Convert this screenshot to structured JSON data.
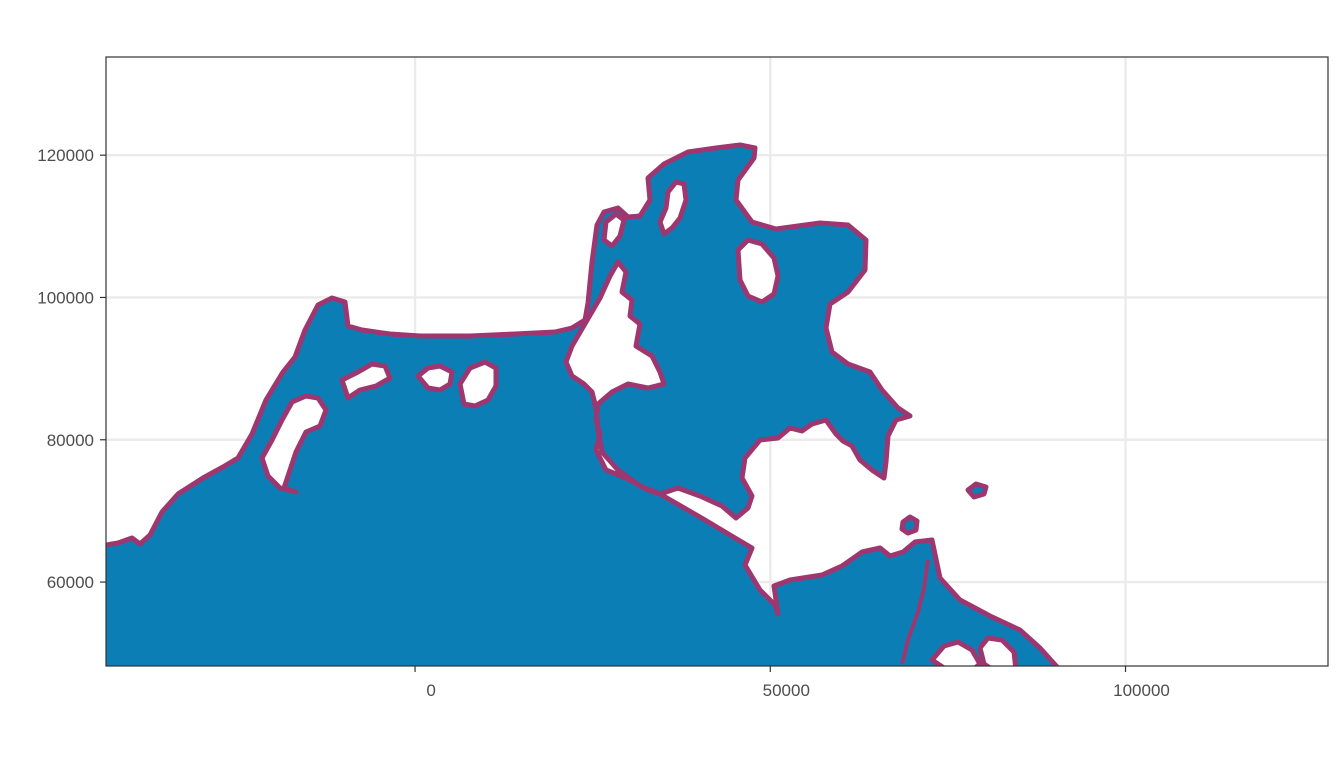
{
  "map": {
    "type": "map",
    "x_axis": {
      "range": [
        -43500,
        128500
      ],
      "ticks": [
        {
          "value": 0,
          "label": "0"
        },
        {
          "value": 50000,
          "label": "50000"
        },
        {
          "value": 100000,
          "label": "100000"
        }
      ]
    },
    "y_axis": {
      "range": [
        48200,
        133800
      ],
      "ticks": [
        {
          "value": 60000,
          "label": "60000"
        },
        {
          "value": 80000,
          "label": "80000"
        },
        {
          "value": 100000,
          "label": "100000"
        },
        {
          "value": 120000,
          "label": "120000"
        }
      ]
    },
    "grid": true,
    "colors": {
      "land_fill": "#0b7fb5",
      "coast_stroke": "#9e3670",
      "grid": "#ebebeb",
      "panel_border": "#333333",
      "tick_text": "#4d4d4d",
      "background": "#ffffff"
    }
  }
}
